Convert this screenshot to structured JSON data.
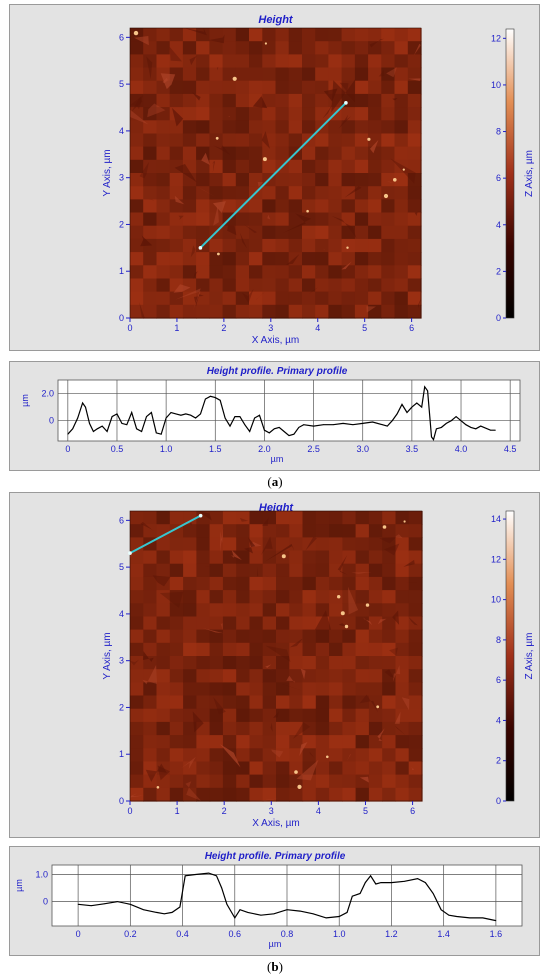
{
  "figures": [
    {
      "id": "a",
      "caption_letter": "a",
      "image": {
        "title": "Height",
        "xlabel": "X Axis, µm",
        "ylabel": "Y Axis, µm",
        "x_ticks": [
          "0",
          "1",
          "2",
          "3",
          "4",
          "5",
          "6"
        ],
        "y_ticks": [
          "0",
          "1",
          "2",
          "3",
          "4",
          "5",
          "6"
        ],
        "colorbar_label": "Z Axis, µm",
        "colorbar_ticks": [
          "0",
          "2",
          "4",
          "6",
          "8",
          "10",
          "12"
        ],
        "colorbar_max": 12.4,
        "profile_line": {
          "x1": 1.5,
          "y1": 1.5,
          "x2": 4.6,
          "y2": 4.6
        },
        "line_color": "#37c6cf"
      },
      "chart_data": {
        "type": "line",
        "title": "Height profile. Primary profile",
        "xlabel": "µm",
        "ylabel": "µm",
        "x_ticks": [
          "0",
          "0.5",
          "1.0",
          "1.5",
          "2.0",
          "2.5",
          "3.0",
          "3.5",
          "4.0",
          "4.5"
        ],
        "y_ticks": [
          "0",
          "2.0"
        ],
        "xlim": [
          -0.1,
          4.6
        ],
        "ylim": [
          -1.5,
          3.0
        ],
        "series": [
          {
            "x": [
              0.0,
              0.05,
              0.1,
              0.15,
              0.18,
              0.22,
              0.26,
              0.3,
              0.35,
              0.4,
              0.45,
              0.5,
              0.55,
              0.6,
              0.65,
              0.7,
              0.75,
              0.8,
              0.85,
              0.9,
              0.95,
              1.0,
              1.05,
              1.1,
              1.15,
              1.2,
              1.25,
              1.3,
              1.35,
              1.4,
              1.45,
              1.5,
              1.55,
              1.6,
              1.65,
              1.7,
              1.75,
              1.8,
              1.85,
              1.9,
              1.95,
              2.0,
              2.05,
              2.1,
              2.15,
              2.2,
              2.25,
              2.3,
              2.35,
              2.4,
              2.5,
              2.6,
              2.7,
              2.8,
              2.9,
              3.0,
              3.1,
              3.2,
              3.25,
              3.3,
              3.35,
              3.4,
              3.45,
              3.5,
              3.55,
              3.6,
              3.63,
              3.66,
              3.7,
              3.72,
              3.75,
              3.8,
              3.85,
              3.9,
              3.95,
              4.0,
              4.05,
              4.1,
              4.15,
              4.2,
              4.3,
              4.35
            ],
            "y": [
              -1.0,
              -0.6,
              0.2,
              1.3,
              1.0,
              -0.2,
              -0.8,
              -0.6,
              -0.4,
              -0.8,
              0.3,
              0.5,
              -0.2,
              -0.3,
              0.6,
              -0.6,
              -0.8,
              0.3,
              0.6,
              -0.9,
              -1.0,
              0.2,
              0.6,
              0.5,
              0.4,
              0.5,
              0.4,
              0.2,
              0.5,
              1.6,
              1.8,
              1.7,
              1.5,
              0.2,
              -0.4,
              0.3,
              0.3,
              -0.3,
              -0.8,
              0.2,
              0.4,
              -0.7,
              -0.9,
              -0.6,
              -0.5,
              -0.8,
              -1.1,
              -1.0,
              -0.5,
              -0.3,
              -0.4,
              -0.3,
              -0.3,
              -0.2,
              -0.3,
              -0.2,
              -0.1,
              -0.3,
              -0.4,
              0.0,
              0.5,
              1.2,
              0.6,
              1.0,
              1.3,
              1.0,
              2.5,
              2.2,
              -1.2,
              -1.4,
              -0.6,
              -0.5,
              -0.2,
              0.0,
              0.3,
              0.0,
              -0.3,
              -0.5,
              -0.6,
              -0.4,
              -0.7,
              -0.7
            ]
          }
        ]
      }
    },
    {
      "id": "b",
      "caption_letter": "b",
      "image": {
        "title": "Height",
        "xlabel": "X Axis, µm",
        "ylabel": "Y Axis, µm",
        "x_ticks": [
          "0",
          "1",
          "2",
          "3",
          "4",
          "5",
          "6"
        ],
        "y_ticks": [
          "0",
          "1",
          "2",
          "3",
          "4",
          "5",
          "6"
        ],
        "colorbar_label": "Z Axis, µm",
        "colorbar_ticks": [
          "0",
          "2",
          "4",
          "6",
          "8",
          "10",
          "12",
          "14"
        ],
        "colorbar_max": 14.4,
        "profile_line": {
          "x1": 0.0,
          "y1": 5.3,
          "x2": 1.5,
          "y2": 6.1
        },
        "line_color": "#37c6cf"
      },
      "chart_data": {
        "type": "line",
        "title": "Height profile. Primary profile",
        "xlabel": "µm",
        "ylabel": "µm",
        "x_ticks": [
          "0",
          "0.2",
          "0.4",
          "0.6",
          "0.8",
          "1.0",
          "1.2",
          "1.4",
          "1.6"
        ],
        "y_ticks": [
          "0",
          "1.0"
        ],
        "xlim": [
          -0.1,
          1.7
        ],
        "ylim": [
          -0.9,
          1.35
        ],
        "series": [
          {
            "x": [
              0.0,
              0.05,
              0.1,
              0.15,
              0.2,
              0.25,
              0.3,
              0.33,
              0.36,
              0.39,
              0.41,
              0.45,
              0.5,
              0.53,
              0.55,
              0.57,
              0.6,
              0.62,
              0.65,
              0.7,
              0.75,
              0.8,
              0.85,
              0.9,
              0.95,
              1.0,
              1.03,
              1.05,
              1.08,
              1.1,
              1.12,
              1.14,
              1.16,
              1.2,
              1.25,
              1.3,
              1.33,
              1.36,
              1.39,
              1.42,
              1.45,
              1.5,
              1.55,
              1.6
            ],
            "y": [
              -0.1,
              -0.15,
              -0.08,
              0.0,
              -0.1,
              -0.3,
              -0.4,
              -0.45,
              -0.4,
              -0.2,
              0.95,
              1.0,
              1.05,
              0.95,
              0.5,
              -0.1,
              -0.6,
              -0.3,
              -0.4,
              -0.5,
              -0.45,
              -0.3,
              -0.35,
              -0.45,
              -0.6,
              -0.55,
              -0.4,
              0.2,
              0.3,
              0.7,
              0.95,
              0.65,
              0.7,
              0.7,
              0.75,
              0.85,
              0.7,
              0.3,
              -0.3,
              -0.5,
              -0.55,
              -0.6,
              -0.6,
              -0.7
            ]
          }
        ]
      }
    }
  ],
  "colors": {
    "axis_text": "#1f1fc8",
    "title_text": "#1f1fc8",
    "panel_bg": "#e3e3e3",
    "plot_bg": "#ffffff",
    "profile_line": "#000000"
  }
}
